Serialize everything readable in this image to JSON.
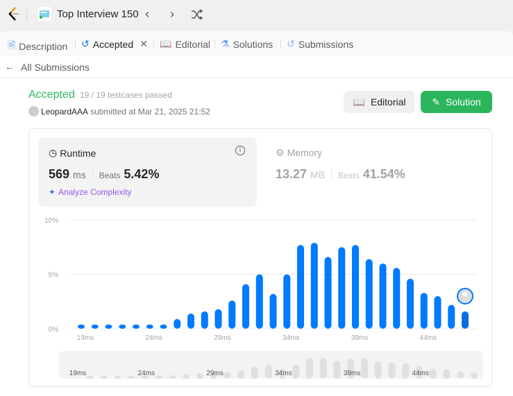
{
  "header": {
    "problem_list_title": "Top Interview 150"
  },
  "tabs": [
    {
      "label": "Description"
    },
    {
      "label": "Accepted"
    },
    {
      "label": "Editorial"
    },
    {
      "label": "Solutions"
    },
    {
      "label": "Submissions"
    }
  ],
  "back_link": "All Submissions",
  "result": {
    "status": "Accepted",
    "testcases": "19 / 19 testcases passed",
    "user": "LeopardAAA",
    "submitted": "submitted at Mar 21, 2025 21:52"
  },
  "buttons": {
    "editorial": "Editorial",
    "solution": "Solution"
  },
  "runtime": {
    "title": "Runtime",
    "value": "569",
    "unit": "ms",
    "beats_label": "Beats",
    "beats": "5.42%",
    "analyze": "Analyze Complexity"
  },
  "memory": {
    "title": "Memory",
    "value": "13.27",
    "unit": "MB",
    "beats_label": "Beats",
    "beats": "41.54%"
  },
  "colors": {
    "accent": "#007aff",
    "success": "#2db55d"
  },
  "chart_data": {
    "type": "bar",
    "x": [
      19,
      20,
      21,
      22,
      23,
      24,
      25,
      26,
      27,
      28,
      29,
      30,
      31,
      32,
      33,
      34,
      35,
      36,
      37,
      38,
      39,
      40,
      41,
      42,
      43,
      44,
      45,
      46,
      47
    ],
    "values": [
      0.2,
      0.2,
      0.2,
      0.2,
      0.2,
      0.2,
      0.2,
      0.7,
      1.2,
      1.4,
      1.6,
      2.4,
      3.9,
      4.8,
      3.0,
      4.8,
      7.5,
      7.7,
      6.4,
      7.3,
      7.5,
      6.2,
      5.8,
      5.4,
      4.4,
      3.1,
      2.8,
      2.0,
      1.4
    ],
    "x_tick_labels": [
      "19ms",
      "24ms",
      "29ms",
      "34ms",
      "39ms",
      "44ms"
    ],
    "y_tick_labels": [
      "0%",
      "5%",
      "10%"
    ],
    "ylim": [
      0,
      10
    ],
    "grid": true,
    "highlighted_x": 47
  }
}
